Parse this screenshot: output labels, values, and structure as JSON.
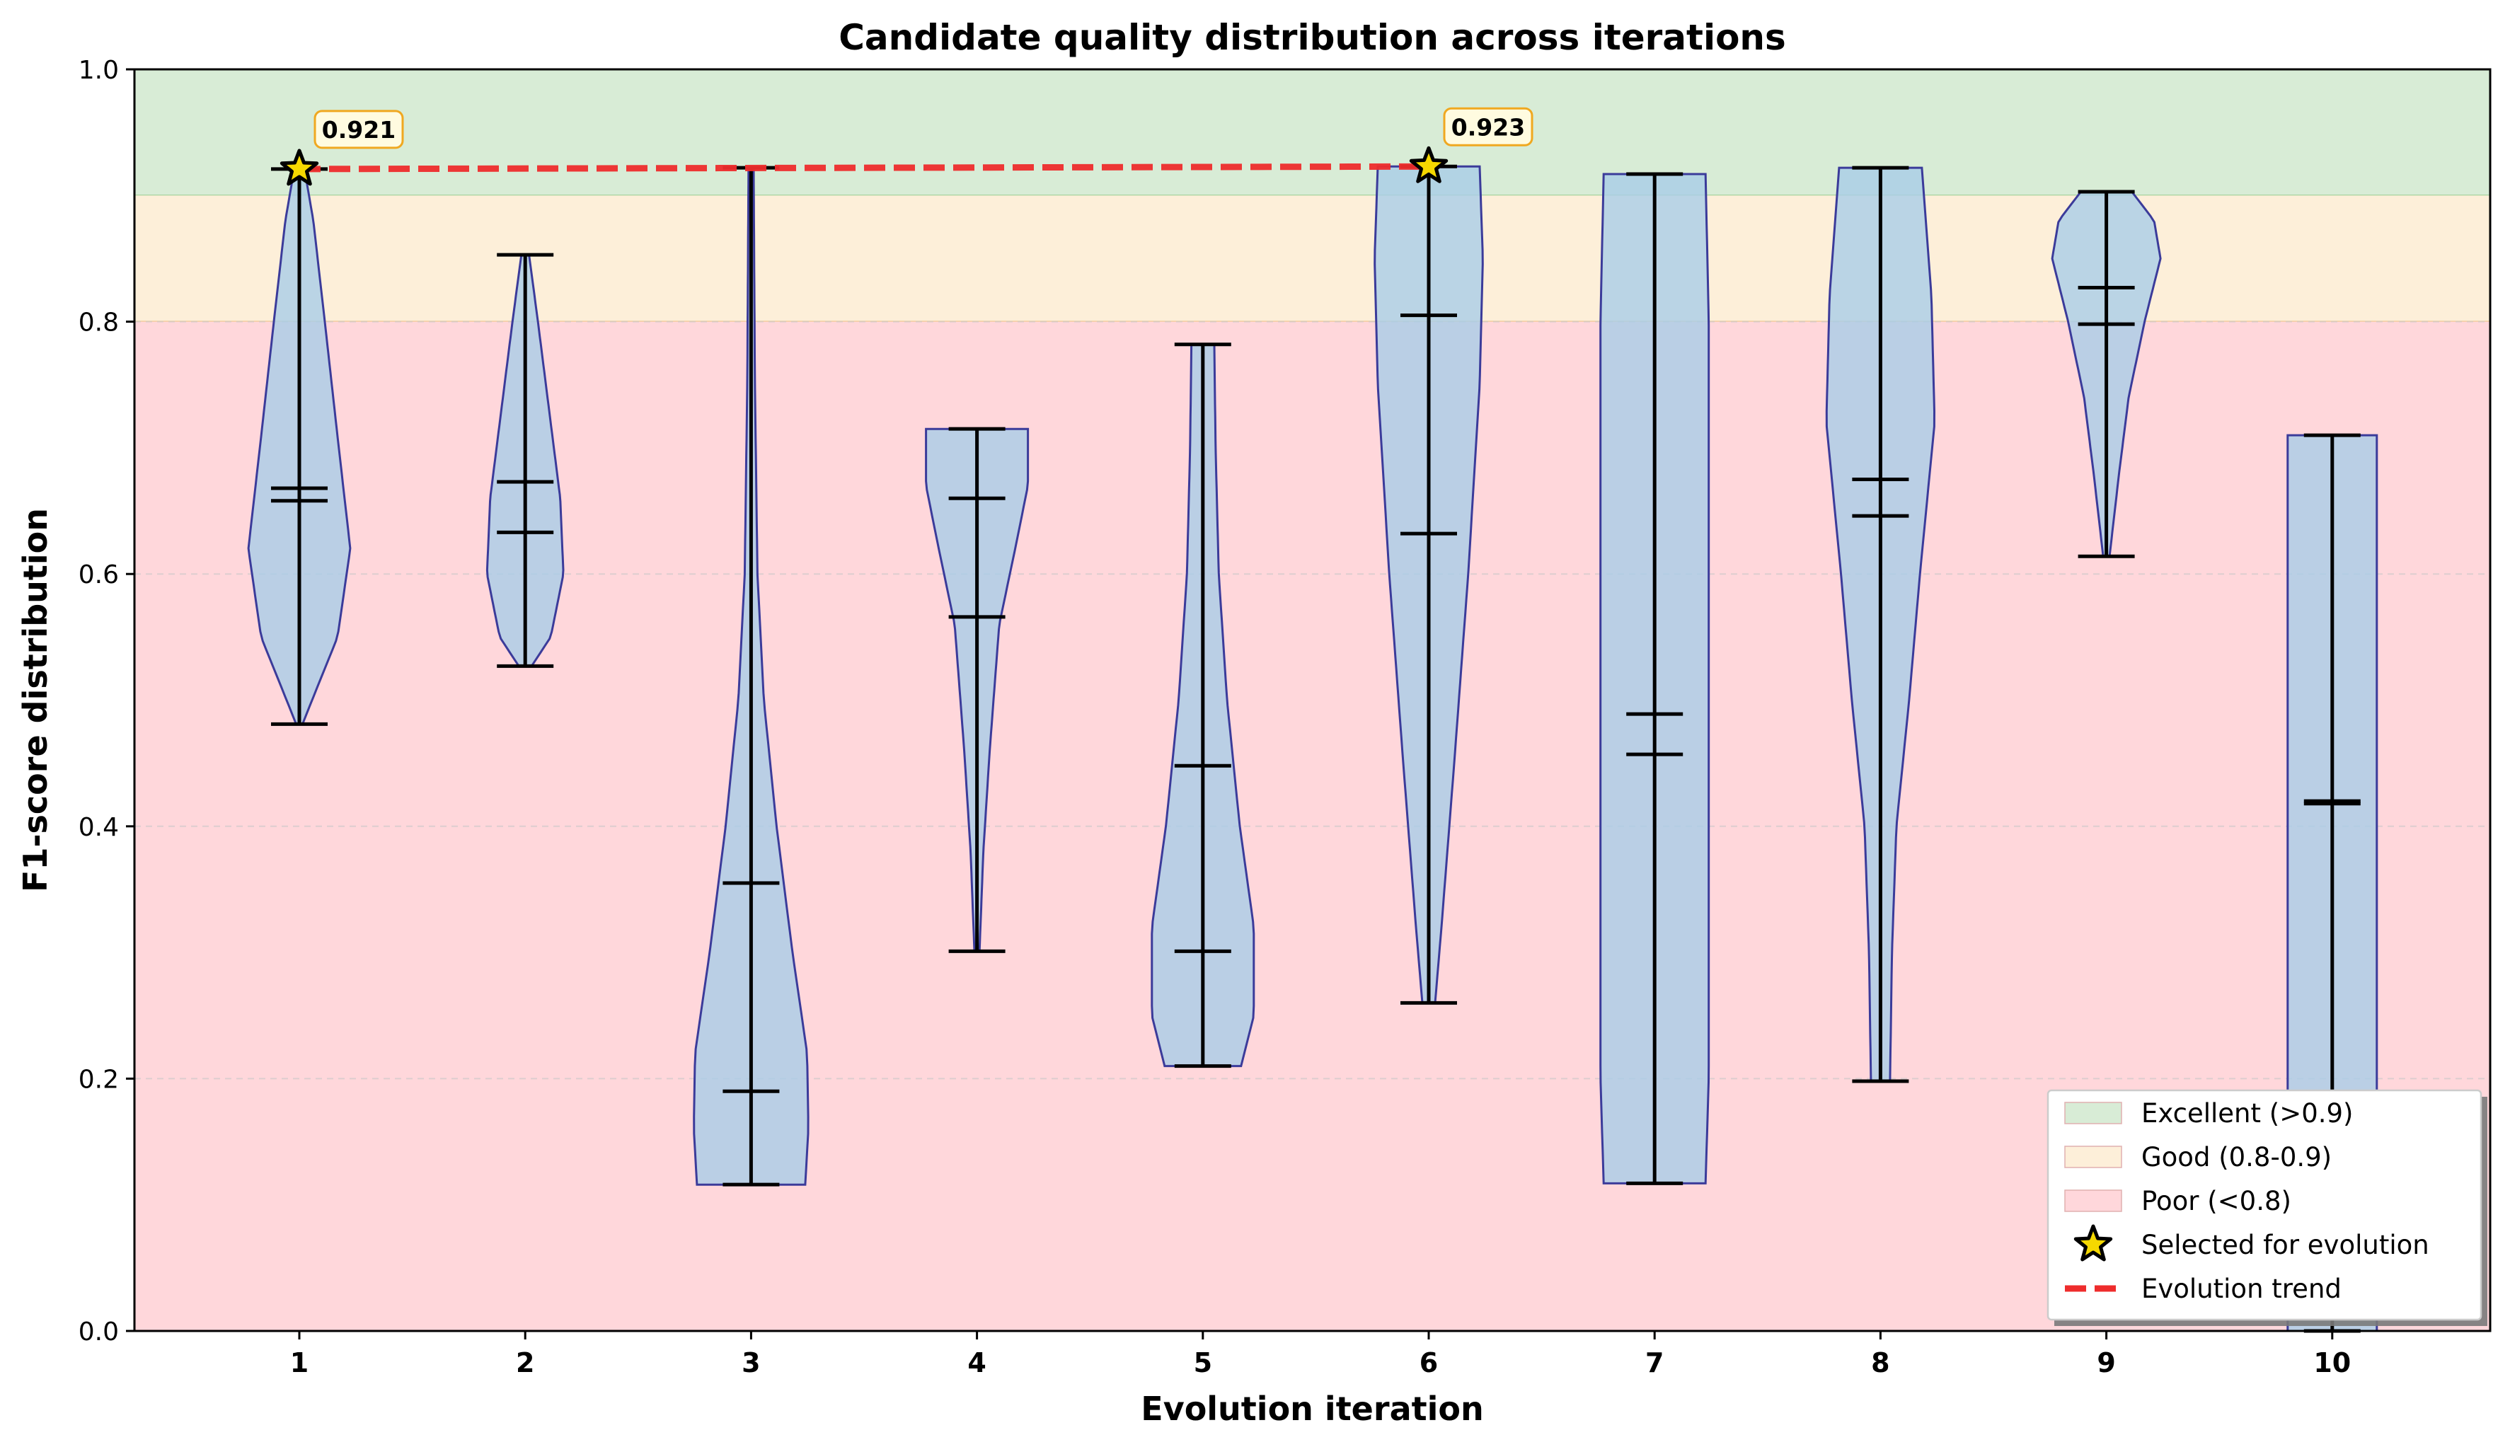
{
  "chart_data": {
    "type": "violin",
    "title": "Candidate quality distribution across iterations",
    "xlabel": "Evolution iteration",
    "ylabel": "F1-score distribution",
    "ylim": [
      0.0,
      1.0
    ],
    "yticks": [
      "0.0",
      "0.2",
      "0.4",
      "0.6",
      "0.8",
      "1.0"
    ],
    "categories": [
      "1",
      "2",
      "3",
      "4",
      "5",
      "6",
      "7",
      "8",
      "9",
      "10"
    ],
    "bands": [
      {
        "label": "Excellent (>0.9)",
        "from": 0.9,
        "to": 1.0,
        "color": "#d8ecd6",
        "edge": "#a8d4a0"
      },
      {
        "label": "Good (0.8-0.9)",
        "from": 0.8,
        "to": 0.9,
        "color": "#fdefd9",
        "edge": "#f0c890"
      },
      {
        "label": "Poor (<0.8)",
        "from": 0.0,
        "to": 0.8,
        "color": "#ffd7db",
        "edge": "#f5aab2"
      }
    ],
    "violins": [
      {
        "iteration": 1,
        "min": 0.481,
        "max": 0.921,
        "mean": 0.668,
        "median": 0.658,
        "profile": [
          [
            0.481,
            0.05
          ],
          [
            0.5,
            0.2
          ],
          [
            0.55,
            0.6
          ],
          [
            0.62,
            0.8
          ],
          [
            0.7,
            0.62
          ],
          [
            0.8,
            0.4
          ],
          [
            0.88,
            0.22
          ],
          [
            0.921,
            0.08
          ]
        ]
      },
      {
        "iteration": 2,
        "min": 0.527,
        "max": 0.853,
        "mean": 0.673,
        "median": 0.633,
        "profile": [
          [
            0.527,
            0.1
          ],
          [
            0.55,
            0.4
          ],
          [
            0.6,
            0.6
          ],
          [
            0.66,
            0.55
          ],
          [
            0.72,
            0.4
          ],
          [
            0.8,
            0.2
          ],
          [
            0.853,
            0.06
          ]
        ]
      },
      {
        "iteration": 3,
        "min": 0.116,
        "max": 0.922,
        "mean": 0.355,
        "median": 0.19,
        "profile": [
          [
            0.116,
            0.85
          ],
          [
            0.16,
            0.9
          ],
          [
            0.22,
            0.88
          ],
          [
            0.3,
            0.65
          ],
          [
            0.4,
            0.4
          ],
          [
            0.5,
            0.2
          ],
          [
            0.6,
            0.1
          ],
          [
            0.75,
            0.06
          ],
          [
            0.922,
            0.04
          ]
        ]
      },
      {
        "iteration": 4,
        "min": 0.301,
        "max": 0.715,
        "mean": 0.566,
        "median": 0.66,
        "profile": [
          [
            0.301,
            0.04
          ],
          [
            0.38,
            0.1
          ],
          [
            0.46,
            0.2
          ],
          [
            0.56,
            0.35
          ],
          [
            0.62,
            0.6
          ],
          [
            0.67,
            0.8
          ],
          [
            0.715,
            0.8
          ]
        ]
      },
      {
        "iteration": 5,
        "min": 0.21,
        "max": 0.782,
        "mean": 0.448,
        "median": 0.301,
        "profile": [
          [
            0.21,
            0.6
          ],
          [
            0.25,
            0.8
          ],
          [
            0.32,
            0.8
          ],
          [
            0.4,
            0.58
          ],
          [
            0.5,
            0.38
          ],
          [
            0.6,
            0.25
          ],
          [
            0.7,
            0.2
          ],
          [
            0.782,
            0.18
          ]
        ]
      },
      {
        "iteration": 6,
        "min": 0.26,
        "max": 0.923,
        "mean": 0.632,
        "median": 0.805,
        "profile": [
          [
            0.26,
            0.1
          ],
          [
            0.32,
            0.2
          ],
          [
            0.45,
            0.4
          ],
          [
            0.6,
            0.62
          ],
          [
            0.75,
            0.8
          ],
          [
            0.85,
            0.85
          ],
          [
            0.923,
            0.8
          ]
        ]
      },
      {
        "iteration": 7,
        "min": 0.117,
        "max": 0.917,
        "mean": 0.457,
        "median": 0.489,
        "profile": [
          [
            0.117,
            0.8
          ],
          [
            0.2,
            0.85
          ],
          [
            0.35,
            0.85
          ],
          [
            0.5,
            0.85
          ],
          [
            0.65,
            0.85
          ],
          [
            0.8,
            0.85
          ],
          [
            0.917,
            0.8
          ]
        ]
      },
      {
        "iteration": 8,
        "min": 0.198,
        "max": 0.922,
        "mean": 0.646,
        "median": 0.675,
        "profile": [
          [
            0.198,
            0.15
          ],
          [
            0.3,
            0.18
          ],
          [
            0.4,
            0.25
          ],
          [
            0.5,
            0.45
          ],
          [
            0.6,
            0.62
          ],
          [
            0.72,
            0.85
          ],
          [
            0.82,
            0.8
          ],
          [
            0.922,
            0.65
          ]
        ]
      },
      {
        "iteration": 9,
        "min": 0.614,
        "max": 0.903,
        "mean": 0.798,
        "median": 0.827,
        "profile": [
          [
            0.614,
            0.05
          ],
          [
            0.68,
            0.2
          ],
          [
            0.74,
            0.35
          ],
          [
            0.8,
            0.6
          ],
          [
            0.85,
            0.85
          ],
          [
            0.88,
            0.75
          ],
          [
            0.903,
            0.4
          ]
        ]
      },
      {
        "iteration": 10,
        "min": 0.0,
        "max": 0.71,
        "mean": 0.418,
        "median": 0.42,
        "profile": [
          [
            0.0,
            0.7
          ],
          [
            0.15,
            0.7
          ],
          [
            0.3,
            0.7
          ],
          [
            0.45,
            0.7
          ],
          [
            0.6,
            0.7
          ],
          [
            0.71,
            0.7
          ]
        ]
      }
    ],
    "selected": [
      {
        "iteration": 1,
        "value": 0.921,
        "label": "0.921"
      },
      {
        "iteration": 6,
        "value": 0.923,
        "label": "0.923"
      }
    ],
    "legend": {
      "position": "lower-right",
      "entries": [
        {
          "label": "Excellent (>0.9)",
          "kind": "patch",
          "color": "#d8ecd6"
        },
        {
          "label": "Good (0.8-0.9)",
          "kind": "patch",
          "color": "#fdefd9"
        },
        {
          "label": "Poor (<0.8)",
          "kind": "patch",
          "color": "#ffd7db"
        },
        {
          "label": "Selected for evolution",
          "kind": "star",
          "color": "#f5d800"
        },
        {
          "label": "Evolution trend",
          "kind": "dash",
          "color": "#ee2c2c"
        }
      ]
    },
    "violin_fill": "#a9cde7",
    "violin_edge": "#3b3b9a",
    "trend_color": "#ee2c2c",
    "star_color": "#f5d800",
    "grid": "horizontal dashed"
  }
}
